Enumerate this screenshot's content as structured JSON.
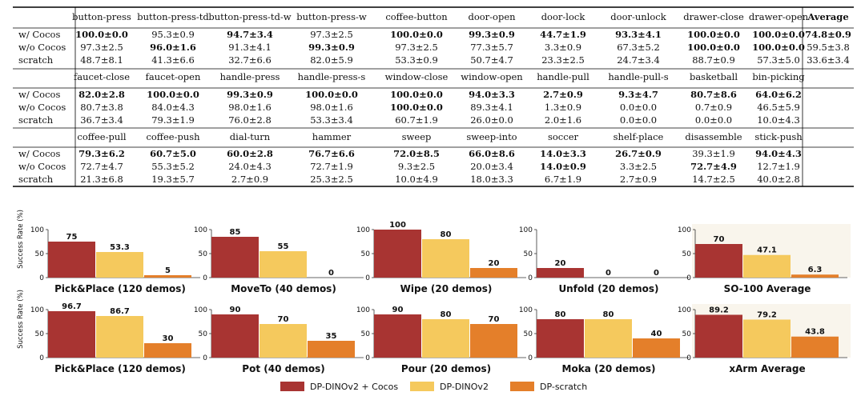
{
  "tables": [
    {
      "columns": [
        "button-press",
        "button-press-td",
        "button-press-td-w",
        "button-press-w",
        "coffee-button",
        "door-open",
        "door-lock",
        "door-unlock",
        "drawer-close",
        "drawer-open"
      ],
      "extra_header": "Average",
      "rows": [
        {
          "label": "w/ Cocos",
          "cells": [
            {
              "v": "100.0±0.0",
              "b": true
            },
            {
              "v": "95.3±0.9",
              "b": false
            },
            {
              "v": "94.7±3.4",
              "b": true
            },
            {
              "v": "97.3±2.5",
              "b": false
            },
            {
              "v": "100.0±0.0",
              "b": true
            },
            {
              "v": "99.3±0.9",
              "b": true
            },
            {
              "v": "44.7±1.9",
              "b": true
            },
            {
              "v": "93.3±4.1",
              "b": true
            },
            {
              "v": "100.0±0.0",
              "b": true
            },
            {
              "v": "100.0±0.0",
              "b": true
            }
          ],
          "extra": {
            "v": "74.8±0.9",
            "b": true
          }
        },
        {
          "label": "w/o Cocos",
          "cells": [
            {
              "v": "97.3±2.5",
              "b": false
            },
            {
              "v": "96.0±1.6",
              "b": true
            },
            {
              "v": "91.3±4.1",
              "b": false
            },
            {
              "v": "99.3±0.9",
              "b": true
            },
            {
              "v": "97.3±2.5",
              "b": false
            },
            {
              "v": "77.3±5.7",
              "b": false
            },
            {
              "v": "3.3±0.9",
              "b": false
            },
            {
              "v": "67.3±5.2",
              "b": false
            },
            {
              "v": "100.0±0.0",
              "b": true
            },
            {
              "v": "100.0±0.0",
              "b": true
            }
          ],
          "extra": {
            "v": "59.5±3.8",
            "b": false
          }
        },
        {
          "label": "scratch",
          "cells": [
            {
              "v": "48.7±8.1",
              "b": false
            },
            {
              "v": "41.3±6.6",
              "b": false
            },
            {
              "v": "32.7±6.6",
              "b": false
            },
            {
              "v": "82.0±5.9",
              "b": false
            },
            {
              "v": "53.3±0.9",
              "b": false
            },
            {
              "v": "50.7±4.7",
              "b": false
            },
            {
              "v": "23.3±2.5",
              "b": false
            },
            {
              "v": "24.7±3.4",
              "b": false
            },
            {
              "v": "88.7±0.9",
              "b": false
            },
            {
              "v": "57.3±5.0",
              "b": false
            }
          ],
          "extra": {
            "v": "33.6±3.4",
            "b": false
          }
        }
      ]
    },
    {
      "columns": [
        "faucet-close",
        "faucet-open",
        "handle-press",
        "handle-press-s",
        "window-close",
        "window-open",
        "handle-pull",
        "handle-pull-s",
        "basketball",
        "bin-picking"
      ],
      "extra_header": "",
      "rows": [
        {
          "label": "w/ Cocos",
          "cells": [
            {
              "v": "82.0±2.8",
              "b": true
            },
            {
              "v": "100.0±0.0",
              "b": true
            },
            {
              "v": "99.3±0.9",
              "b": true
            },
            {
              "v": "100.0±0.0",
              "b": true
            },
            {
              "v": "100.0±0.0",
              "b": true
            },
            {
              "v": "94.0±3.3",
              "b": true
            },
            {
              "v": "2.7±0.9",
              "b": true
            },
            {
              "v": "9.3±4.7",
              "b": true
            },
            {
              "v": "80.7±8.6",
              "b": true
            },
            {
              "v": "64.0±6.2",
              "b": true
            }
          ]
        },
        {
          "label": "w/o Cocos",
          "cells": [
            {
              "v": "80.7±3.8",
              "b": false
            },
            {
              "v": "84.0±4.3",
              "b": false
            },
            {
              "v": "98.0±1.6",
              "b": false
            },
            {
              "v": "98.0±1.6",
              "b": false
            },
            {
              "v": "100.0±0.0",
              "b": true
            },
            {
              "v": "89.3±4.1",
              "b": false
            },
            {
              "v": "1.3±0.9",
              "b": false
            },
            {
              "v": "0.0±0.0",
              "b": false
            },
            {
              "v": "0.7±0.9",
              "b": false
            },
            {
              "v": "46.5±5.9",
              "b": false
            }
          ]
        },
        {
          "label": "scratch",
          "cells": [
            {
              "v": "36.7±3.4",
              "b": false
            },
            {
              "v": "79.3±1.9",
              "b": false
            },
            {
              "v": "76.0±2.8",
              "b": false
            },
            {
              "v": "53.3±3.4",
              "b": false
            },
            {
              "v": "60.7±1.9",
              "b": false
            },
            {
              "v": "26.0±0.0",
              "b": false
            },
            {
              "v": "2.0±1.6",
              "b": false
            },
            {
              "v": "0.0±0.0",
              "b": false
            },
            {
              "v": "0.0±0.0",
              "b": false
            },
            {
              "v": "10.0±4.3",
              "b": false
            }
          ]
        }
      ]
    },
    {
      "columns": [
        "coffee-pull",
        "coffee-push",
        "dial-turn",
        "hammer",
        "sweep",
        "sweep-into",
        "soccer",
        "shelf-place",
        "disassemble",
        "stick-push"
      ],
      "extra_header": "",
      "rows": [
        {
          "label": "w/ Cocos",
          "cells": [
            {
              "v": "79.3±6.2",
              "b": true
            },
            {
              "v": "60.7±5.0",
              "b": true
            },
            {
              "v": "60.0±2.8",
              "b": true
            },
            {
              "v": "76.7±6.6",
              "b": true
            },
            {
              "v": "72.0±8.5",
              "b": true
            },
            {
              "v": "66.0±8.6",
              "b": true
            },
            {
              "v": "14.0±3.3",
              "b": true
            },
            {
              "v": "26.7±0.9",
              "b": true
            },
            {
              "v": "39.3±1.9",
              "b": false
            },
            {
              "v": "94.0±4.3",
              "b": true
            }
          ]
        },
        {
          "label": "w/o Cocos",
          "cells": [
            {
              "v": "72.7±4.7",
              "b": false
            },
            {
              "v": "55.3±5.2",
              "b": false
            },
            {
              "v": "24.0±4.3",
              "b": false
            },
            {
              "v": "72.7±1.9",
              "b": false
            },
            {
              "v": "9.3±2.5",
              "b": false
            },
            {
              "v": "20.0±3.4",
              "b": false
            },
            {
              "v": "14.0±0.9",
              "b": true
            },
            {
              "v": "3.3±2.5",
              "b": false
            },
            {
              "v": "72.7±4.9",
              "b": true
            },
            {
              "v": "12.7±1.9",
              "b": false
            }
          ]
        },
        {
          "label": "scratch",
          "cells": [
            {
              "v": "21.3±6.8",
              "b": false
            },
            {
              "v": "19.3±5.7",
              "b": false
            },
            {
              "v": "2.7±0.9",
              "b": false
            },
            {
              "v": "25.3±2.5",
              "b": false
            },
            {
              "v": "10.0±4.9",
              "b": false
            },
            {
              "v": "18.0±3.3",
              "b": false
            },
            {
              "v": "6.7±1.9",
              "b": false
            },
            {
              "v": "2.7±0.9",
              "b": false
            },
            {
              "v": "14.7±2.5",
              "b": false
            },
            {
              "v": "40.0±2.8",
              "b": false
            }
          ]
        }
      ]
    }
  ],
  "chart_data": {
    "type": "bar",
    "ylabel": "Success Rate (%)",
    "ylim": [
      0,
      100
    ],
    "yticks": [
      0,
      50,
      100
    ],
    "series_names": [
      "DP-DINOv2 + Cocos",
      "DP-DINOv2",
      "DP-scratch"
    ],
    "colors": [
      "#a83432",
      "#f5c95d",
      "#e47f2a"
    ],
    "average_panel_bg": "#f9f5ec",
    "legend_position": "bottom-center",
    "panels": [
      {
        "title": "Pick&Place (120 demos)",
        "values": [
          75,
          53.3,
          5
        ],
        "labels": [
          "75",
          "53.3",
          "5"
        ],
        "average": false
      },
      {
        "title": "MoveTo (40 demos)",
        "values": [
          85,
          55,
          0
        ],
        "labels": [
          "85",
          "55",
          "0"
        ],
        "average": false
      },
      {
        "title": "Wipe (20 demos)",
        "values": [
          100,
          80,
          20
        ],
        "labels": [
          "100",
          "80",
          "20"
        ],
        "average": false
      },
      {
        "title": "Unfold (20 demos)",
        "values": [
          20,
          0,
          0
        ],
        "labels": [
          "20",
          "0",
          "0"
        ],
        "average": false
      },
      {
        "title": "SO-100 Average",
        "values": [
          70,
          47.1,
          6.3
        ],
        "labels": [
          "70",
          "47.1",
          "6.3"
        ],
        "average": true
      },
      {
        "title": "Pick&Place (120 demos)",
        "values": [
          96.7,
          86.7,
          30
        ],
        "labels": [
          "96.7",
          "86.7",
          "30"
        ],
        "average": false
      },
      {
        "title": "Pot (40 demos)",
        "values": [
          90,
          70,
          35
        ],
        "labels": [
          "90",
          "70",
          "35"
        ],
        "average": false
      },
      {
        "title": "Pour (20 demos)",
        "values": [
          90,
          80,
          70
        ],
        "labels": [
          "90",
          "80",
          "70"
        ],
        "average": false
      },
      {
        "title": "Moka (20 demos)",
        "values": [
          80,
          80,
          40
        ],
        "labels": [
          "80",
          "80",
          "40"
        ],
        "average": false
      },
      {
        "title": "xArm Average",
        "values": [
          89.2,
          79.2,
          43.8
        ],
        "labels": [
          "89.2",
          "79.2",
          "43.8"
        ],
        "average": true
      }
    ]
  }
}
